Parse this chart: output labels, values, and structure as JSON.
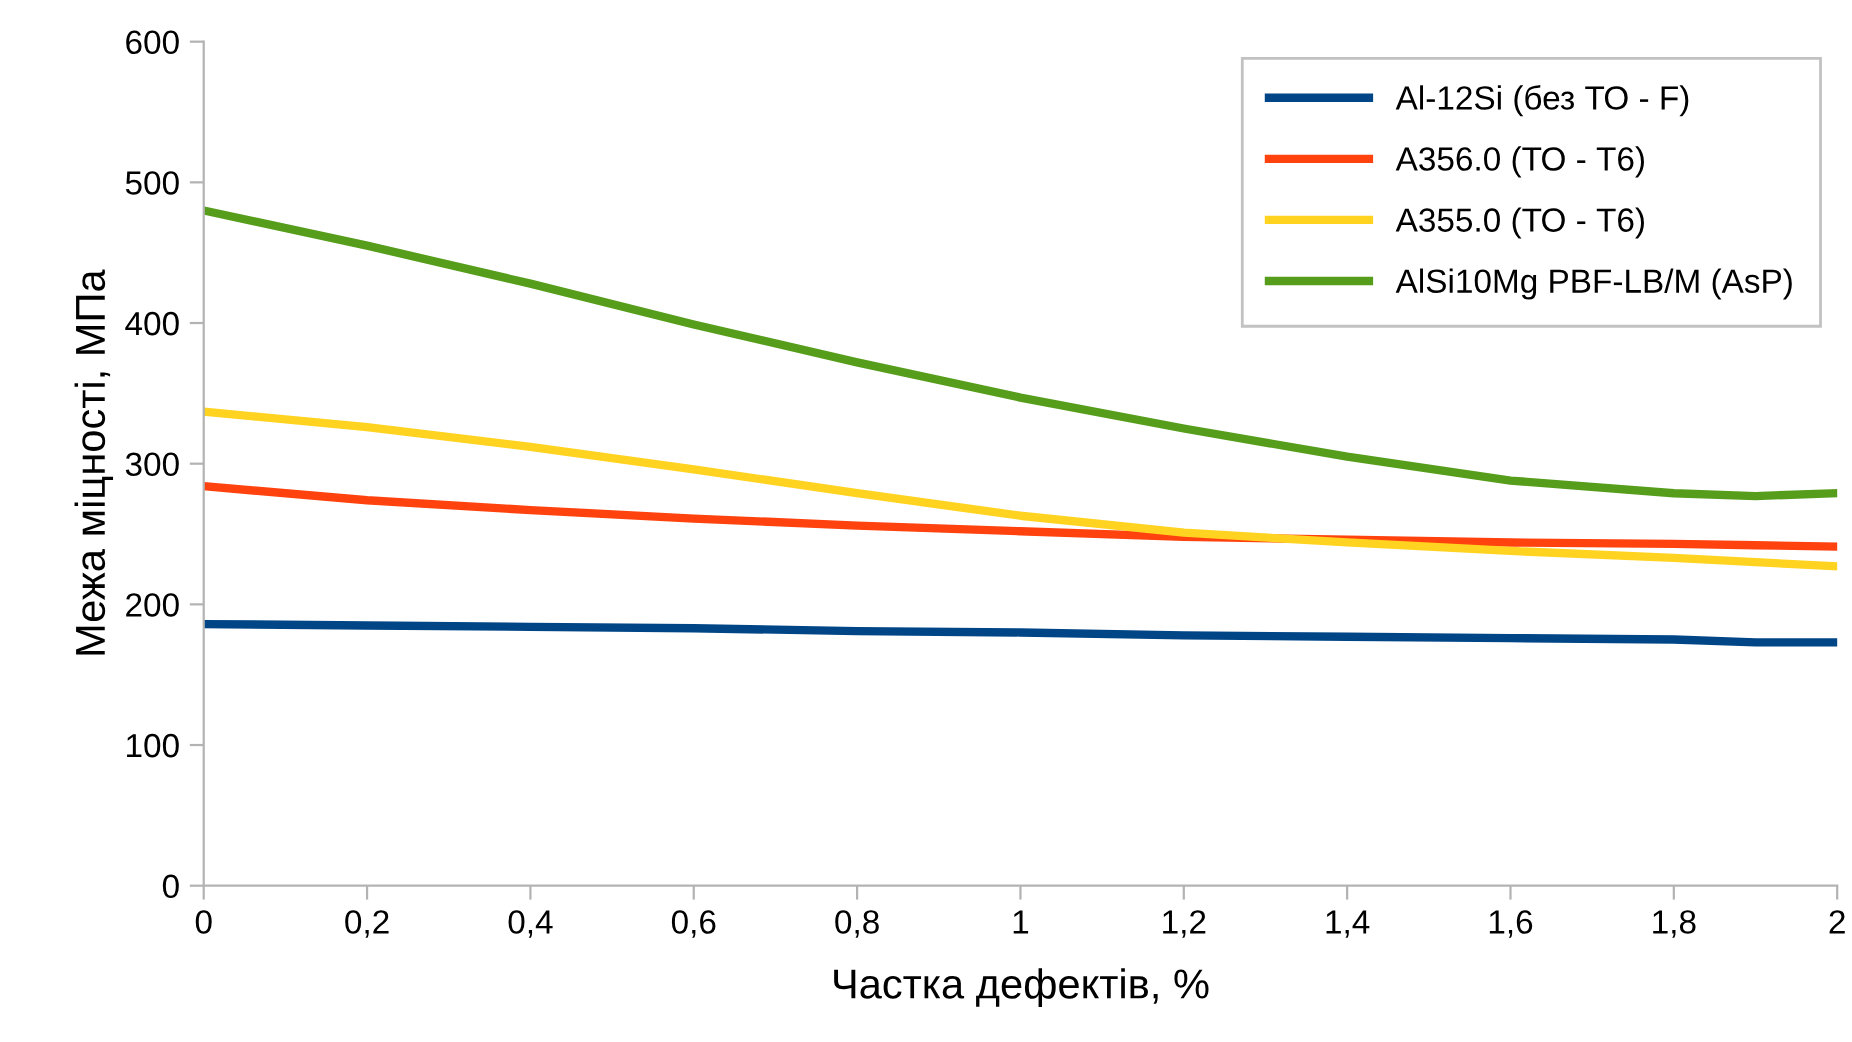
{
  "chart_data": {
    "type": "line",
    "xlabel": "Частка дефектів, %",
    "ylabel": "Межа міцності, МПа",
    "x": [
      0,
      0.2,
      0.4,
      0.6,
      0.8,
      1.0,
      1.2,
      1.4,
      1.6,
      1.8,
      1.9,
      2.0
    ],
    "series": [
      {
        "name": "Al-12Si (без ТО - F)",
        "color": "#004586",
        "values": [
          186,
          185,
          184,
          183,
          181,
          180,
          178,
          177,
          176,
          175,
          173,
          173
        ]
      },
      {
        "name": "A356.0 (ТО - Т6)",
        "color": "#ff420e",
        "values": [
          284,
          274,
          267,
          261,
          256,
          252,
          248,
          246,
          244,
          243,
          242,
          241
        ]
      },
      {
        "name": "A355.0 (ТО - Т6)",
        "color": "#ffd320",
        "values": [
          337,
          326,
          312,
          296,
          279,
          263,
          251,
          244,
          238,
          233,
          230,
          227
        ]
      },
      {
        "name": "AlSi10Mg PBF-LB/M (AsP)",
        "color": "#579d1c",
        "values": [
          480,
          455,
          428,
          399,
          372,
          347,
          325,
          305,
          288,
          279,
          277,
          279
        ]
      }
    ],
    "xlim": [
      0,
      2
    ],
    "ylim": [
      0,
      600
    ],
    "xticks": [
      0,
      {
        "value": 0.2,
        "label": "0,2"
      },
      {
        "value": 0.4,
        "label": "0,4"
      },
      {
        "value": 0.6,
        "label": "0,6"
      },
      {
        "value": 0.8,
        "label": "0,8"
      },
      1,
      {
        "value": 1.2,
        "label": "1,2"
      },
      {
        "value": 1.4,
        "label": "1,4"
      },
      {
        "value": 1.6,
        "label": "1,6"
      },
      {
        "value": 1.8,
        "label": "1,8"
      },
      2
    ],
    "yticks": [
      0,
      100,
      200,
      300,
      400,
      500,
      600
    ],
    "grid": false,
    "legend": "top right",
    "marker": "none",
    "line_style": "solid"
  }
}
